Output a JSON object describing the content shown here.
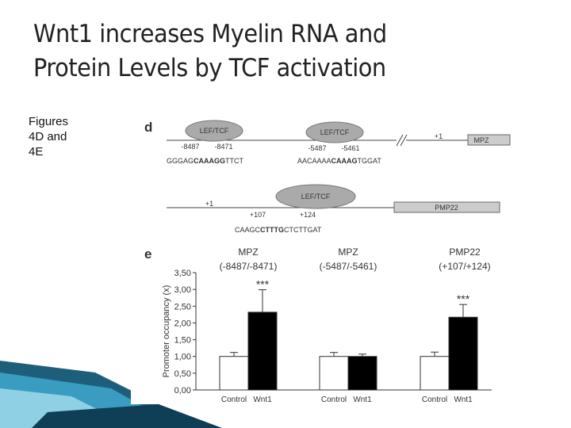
{
  "slide": {
    "title_lines": [
      "Wnt1 increases Myelin RNA and",
      "Protein Levels by TCF activation"
    ],
    "caption": "Figures 4D and 4E"
  },
  "diagram": {
    "panel": "d",
    "factor": "LEF/TCF",
    "mpz": {
      "gene": "MPZ",
      "start": "+1",
      "site1": [
        "-8487",
        "-8471"
      ],
      "site2": [
        "-5487",
        "-5461"
      ],
      "seq1": [
        "GGGAG",
        "CAAAGG",
        "TTCT"
      ],
      "seq2": [
        "AACAAAA",
        "CAAAG",
        "TGGAT"
      ]
    },
    "pmp22": {
      "gene": "PMP22",
      "start": "+1",
      "site": [
        "+107",
        "+124"
      ],
      "seq": [
        "CAAGC",
        "CTTTG",
        "CTCTTGAT"
      ]
    }
  },
  "chart_data": {
    "type": "bar",
    "panel": "e",
    "ylabel": "Promoter occupancy (x)",
    "categories": [
      "MPZ",
      "MPZ",
      "PMP22"
    ],
    "category_sublabels": [
      "(-8487/-8471)",
      "(-5487/-5461)",
      "(+107/+124)"
    ],
    "significance": [
      "***",
      null,
      "***"
    ],
    "series": [
      {
        "name": "Control",
        "color": "#ffffff",
        "values": [
          1.0,
          1.0,
          1.0
        ],
        "errors": [
          0.12,
          0.12,
          0.13
        ]
      },
      {
        "name": "Wnt1",
        "color": "#000000",
        "values": [
          2.32,
          1.0,
          2.17
        ],
        "errors": [
          0.67,
          0.07,
          0.38
        ]
      }
    ],
    "ylim": [
      0,
      3.5
    ],
    "yticks": [
      {
        "value": 0,
        "label": "0,00"
      },
      {
        "value": 0.5,
        "label": "0,50"
      },
      {
        "value": 1,
        "label": "1,00"
      },
      {
        "value": 1.5,
        "label": "1,50"
      },
      {
        "value": 2,
        "label": "2,00"
      },
      {
        "value": 2.5,
        "label": "2,50"
      },
      {
        "value": 3,
        "label": "3,00"
      },
      {
        "value": 3.5,
        "label": "3,50"
      }
    ]
  }
}
